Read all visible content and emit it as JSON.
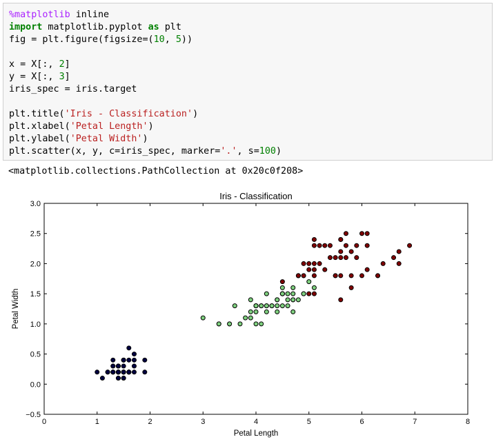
{
  "code_cell": {
    "lines": [
      [
        {
          "t": "%matplotlib",
          "c": "mg"
        },
        {
          "t": " inline",
          "c": ""
        }
      ],
      [
        {
          "t": "import",
          "c": "kw"
        },
        {
          "t": " matplotlib.pyplot ",
          "c": ""
        },
        {
          "t": "as",
          "c": "kw"
        },
        {
          "t": " plt",
          "c": ""
        }
      ],
      [
        {
          "t": "fig = plt.figure(figsize=(",
          "c": ""
        },
        {
          "t": "10",
          "c": "num"
        },
        {
          "t": ", ",
          "c": ""
        },
        {
          "t": "5",
          "c": "num"
        },
        {
          "t": "))",
          "c": ""
        }
      ],
      [
        {
          "t": "",
          "c": ""
        }
      ],
      [
        {
          "t": "x = X[:, ",
          "c": ""
        },
        {
          "t": "2",
          "c": "num"
        },
        {
          "t": "]",
          "c": ""
        }
      ],
      [
        {
          "t": "y = X[:, ",
          "c": ""
        },
        {
          "t": "3",
          "c": "num"
        },
        {
          "t": "]",
          "c": ""
        }
      ],
      [
        {
          "t": "iris_spec = iris.target",
          "c": ""
        }
      ],
      [
        {
          "t": "",
          "c": ""
        }
      ],
      [
        {
          "t": "plt.title(",
          "c": ""
        },
        {
          "t": "'Iris - Classification'",
          "c": "str"
        },
        {
          "t": ")",
          "c": ""
        }
      ],
      [
        {
          "t": "plt.xlabel(",
          "c": ""
        },
        {
          "t": "'Petal Length'",
          "c": "str"
        },
        {
          "t": ")",
          "c": ""
        }
      ],
      [
        {
          "t": "plt.ylabel(",
          "c": ""
        },
        {
          "t": "'Petal Width'",
          "c": "str"
        },
        {
          "t": ")",
          "c": ""
        }
      ],
      [
        {
          "t": "plt.scatter(x, y, c=iris_spec, marker=",
          "c": ""
        },
        {
          "t": "'.'",
          "c": "str"
        },
        {
          "t": ", s=",
          "c": ""
        },
        {
          "t": "100",
          "c": "num"
        },
        {
          "t": ")",
          "c": ""
        }
      ]
    ]
  },
  "output_text": "<matplotlib.collections.PathCollection at 0x20c0f208>",
  "chart_data": {
    "type": "scatter",
    "title": "Iris - Classification",
    "xlabel": "Petal Length",
    "ylabel": "Petal Width",
    "xlim": [
      0,
      8
    ],
    "ylim": [
      -0.5,
      3.0
    ],
    "xticks": [
      0,
      1,
      2,
      3,
      4,
      5,
      6,
      7,
      8
    ],
    "yticks": [
      -0.5,
      0.0,
      0.5,
      1.0,
      1.5,
      2.0,
      2.5,
      3.0
    ],
    "xtick_labels": [
      "0",
      "1",
      "2",
      "3",
      "4",
      "5",
      "6",
      "7",
      "8"
    ],
    "ytick_labels": [
      "−0.5",
      "0.0",
      "0.5",
      "1.0",
      "1.5",
      "2.0",
      "2.5",
      "3.0"
    ],
    "grid": false,
    "series": [
      {
        "color": "#000040",
        "points": [
          [
            1.4,
            0.2
          ],
          [
            1.4,
            0.2
          ],
          [
            1.3,
            0.2
          ],
          [
            1.5,
            0.2
          ],
          [
            1.4,
            0.2
          ],
          [
            1.7,
            0.4
          ],
          [
            1.4,
            0.3
          ],
          [
            1.5,
            0.2
          ],
          [
            1.4,
            0.2
          ],
          [
            1.5,
            0.1
          ],
          [
            1.5,
            0.2
          ],
          [
            1.6,
            0.2
          ],
          [
            1.4,
            0.1
          ],
          [
            1.1,
            0.1
          ],
          [
            1.2,
            0.2
          ],
          [
            1.5,
            0.4
          ],
          [
            1.3,
            0.4
          ],
          [
            1.4,
            0.3
          ],
          [
            1.7,
            0.3
          ],
          [
            1.5,
            0.3
          ],
          [
            1.7,
            0.2
          ],
          [
            1.5,
            0.4
          ],
          [
            1.0,
            0.2
          ],
          [
            1.7,
            0.5
          ],
          [
            1.9,
            0.2
          ],
          [
            1.6,
            0.2
          ],
          [
            1.6,
            0.4
          ],
          [
            1.5,
            0.2
          ],
          [
            1.4,
            0.2
          ],
          [
            1.6,
            0.2
          ],
          [
            1.6,
            0.2
          ],
          [
            1.5,
            0.4
          ],
          [
            1.5,
            0.1
          ],
          [
            1.4,
            0.2
          ],
          [
            1.5,
            0.2
          ],
          [
            1.2,
            0.2
          ],
          [
            1.3,
            0.2
          ],
          [
            1.4,
            0.1
          ],
          [
            1.3,
            0.2
          ],
          [
            1.5,
            0.2
          ],
          [
            1.3,
            0.3
          ],
          [
            1.3,
            0.3
          ],
          [
            1.3,
            0.2
          ],
          [
            1.6,
            0.6
          ],
          [
            1.9,
            0.4
          ],
          [
            1.4,
            0.3
          ],
          [
            1.6,
            0.2
          ],
          [
            1.4,
            0.2
          ],
          [
            1.5,
            0.2
          ],
          [
            1.4,
            0.2
          ]
        ]
      },
      {
        "color": "#7fd07f",
        "points": [
          [
            4.7,
            1.4
          ],
          [
            4.5,
            1.5
          ],
          [
            4.9,
            1.5
          ],
          [
            4.0,
            1.3
          ],
          [
            4.6,
            1.5
          ],
          [
            4.5,
            1.3
          ],
          [
            4.7,
            1.6
          ],
          [
            3.3,
            1.0
          ],
          [
            4.6,
            1.3
          ],
          [
            3.9,
            1.4
          ],
          [
            3.5,
            1.0
          ],
          [
            4.2,
            1.5
          ],
          [
            4.0,
            1.0
          ],
          [
            4.7,
            1.4
          ],
          [
            3.6,
            1.3
          ],
          [
            4.4,
            1.4
          ],
          [
            4.5,
            1.5
          ],
          [
            4.1,
            1.0
          ],
          [
            4.5,
            1.5
          ],
          [
            3.9,
            1.1
          ],
          [
            4.8,
            1.8
          ],
          [
            4.0,
            1.3
          ],
          [
            4.9,
            1.5
          ],
          [
            4.7,
            1.2
          ],
          [
            4.3,
            1.3
          ],
          [
            4.4,
            1.4
          ],
          [
            4.8,
            1.4
          ],
          [
            5.0,
            1.7
          ],
          [
            4.5,
            1.5
          ],
          [
            3.5,
            1.0
          ],
          [
            3.8,
            1.1
          ],
          [
            3.7,
            1.0
          ],
          [
            3.9,
            1.2
          ],
          [
            5.1,
            1.6
          ],
          [
            4.5,
            1.5
          ],
          [
            4.5,
            1.6
          ],
          [
            4.7,
            1.5
          ],
          [
            4.4,
            1.3
          ],
          [
            4.1,
            1.3
          ],
          [
            4.0,
            1.3
          ],
          [
            4.4,
            1.2
          ],
          [
            4.6,
            1.4
          ],
          [
            4.0,
            1.2
          ],
          [
            3.3,
            1.0
          ],
          [
            4.2,
            1.3
          ],
          [
            4.2,
            1.2
          ],
          [
            4.2,
            1.3
          ],
          [
            4.3,
            1.3
          ],
          [
            3.0,
            1.1
          ],
          [
            4.1,
            1.3
          ]
        ]
      },
      {
        "color": "#800000",
        "points": [
          [
            6.0,
            2.5
          ],
          [
            5.1,
            1.9
          ],
          [
            5.9,
            2.1
          ],
          [
            5.6,
            1.8
          ],
          [
            5.8,
            2.2
          ],
          [
            6.6,
            2.1
          ],
          [
            4.5,
            1.7
          ],
          [
            6.3,
            1.8
          ],
          [
            5.8,
            1.8
          ],
          [
            6.1,
            2.5
          ],
          [
            5.1,
            2.0
          ],
          [
            5.3,
            1.9
          ],
          [
            5.5,
            2.1
          ],
          [
            5.0,
            2.0
          ],
          [
            5.1,
            2.4
          ],
          [
            5.3,
            2.3
          ],
          [
            5.5,
            1.8
          ],
          [
            6.7,
            2.2
          ],
          [
            6.9,
            2.3
          ],
          [
            5.0,
            1.5
          ],
          [
            5.7,
            2.3
          ],
          [
            4.9,
            2.0
          ],
          [
            6.7,
            2.0
          ],
          [
            4.9,
            1.8
          ],
          [
            5.7,
            2.1
          ],
          [
            6.0,
            1.8
          ],
          [
            4.8,
            1.8
          ],
          [
            4.9,
            1.8
          ],
          [
            5.6,
            2.1
          ],
          [
            5.8,
            1.6
          ],
          [
            6.1,
            1.9
          ],
          [
            6.4,
            2.0
          ],
          [
            5.6,
            2.2
          ],
          [
            5.1,
            1.5
          ],
          [
            5.6,
            1.4
          ],
          [
            6.1,
            2.3
          ],
          [
            5.6,
            2.4
          ],
          [
            5.5,
            1.8
          ],
          [
            4.8,
            1.8
          ],
          [
            5.4,
            2.1
          ],
          [
            5.6,
            2.4
          ],
          [
            5.1,
            2.3
          ],
          [
            5.9,
            2.3
          ],
          [
            5.7,
            2.5
          ],
          [
            5.2,
            2.3
          ],
          [
            5.0,
            1.9
          ],
          [
            5.2,
            2.0
          ],
          [
            5.4,
            2.3
          ],
          [
            5.1,
            1.8
          ],
          [
            6.3,
            1.8
          ]
        ]
      }
    ]
  }
}
